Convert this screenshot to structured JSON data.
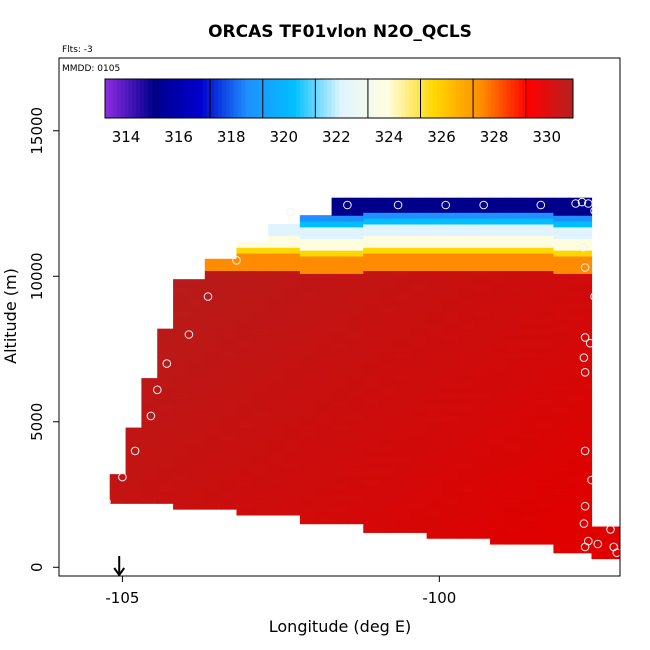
{
  "chart_data": {
    "type": "heatmap",
    "title": "ORCAS TF01vlon N2O_QCLS",
    "annotations": {
      "flts": "Flts: -3",
      "mmdd": "MMDD: 0105"
    },
    "xlabel": "Longitude (deg E)",
    "ylabel": "Altitude (m)",
    "xlim": [
      -106.0,
      -97.15
    ],
    "ylim": [
      -300,
      17500
    ],
    "x_ticks": [
      -105,
      -100
    ],
    "x_tick_labels": [
      "-105",
      "-100"
    ],
    "y_ticks": [
      0,
      5000,
      10000,
      15000
    ],
    "y_tick_labels": [
      "0",
      "5000",
      "10000",
      "15000"
    ],
    "colorbar": {
      "min": 313.2,
      "max": 331.0,
      "tick_values": [
        314,
        316,
        318,
        320,
        322,
        324,
        326,
        328,
        330
      ],
      "tick_labels": [
        "314",
        "316",
        "318",
        "320",
        "322",
        "324",
        "326",
        "328",
        "330"
      ],
      "divisions": [
        313.2,
        315.2,
        317.2,
        319.2,
        321.2,
        323.2,
        325.2,
        327.2,
        329.2,
        331.0
      ],
      "colors": [
        "#8a2be2",
        "#00008b",
        "#0000cd",
        "#1e90ff",
        "#00bfff",
        "#e0f4ff",
        "#fffde0",
        "#ffd700",
        "#ff8c00",
        "#ff0000",
        "#b22222"
      ]
    },
    "arrow_marker_longitude": -105.05,
    "cell_width_deg": 0.25,
    "cell_height_m": 200,
    "profile_columns": [
      {
        "x0": -105.2,
        "x1": -104.95,
        "bottom": 2200,
        "top": 3200
      },
      {
        "x0": -104.95,
        "x1": -104.7,
        "bottom": 2200,
        "top": 4800
      },
      {
        "x0": -104.7,
        "x1": -104.45,
        "bottom": 2200,
        "top": 6500
      },
      {
        "x0": -104.45,
        "x1": -104.2,
        "bottom": 2200,
        "top": 8200
      },
      {
        "x0": -104.2,
        "x1": -103.7,
        "bottom": 2000,
        "top": 9900
      },
      {
        "x0": -103.7,
        "x1": -103.2,
        "bottom": 2000,
        "top": 10600
      },
      {
        "x0": -103.2,
        "x1": -102.7,
        "bottom": 1800,
        "top": 11200
      },
      {
        "x0": -102.7,
        "x1": -102.2,
        "bottom": 1800,
        "top": 11800
      },
      {
        "x0": -102.2,
        "x1": -101.7,
        "bottom": 1500,
        "top": 12100
      },
      {
        "x0": -101.7,
        "x1": -101.2,
        "bottom": 1500,
        "top": 12700
      },
      {
        "x0": -101.2,
        "x1": -100.2,
        "bottom": 1200,
        "top": 12700
      },
      {
        "x0": -100.2,
        "x1": -99.2,
        "bottom": 1000,
        "top": 12700
      },
      {
        "x0": -99.2,
        "x1": -98.2,
        "bottom": 800,
        "top": 12700
      },
      {
        "x0": -98.2,
        "x1": -97.6,
        "bottom": 500,
        "top": 12700
      },
      {
        "x0": -97.6,
        "x1": -97.15,
        "bottom": 300,
        "top": 1400
      }
    ],
    "upper_layer_values": [
      {
        "z0": 12500,
        "z1": 12800,
        "value": 315.0
      },
      {
        "z0": 12200,
        "z1": 12500,
        "value": 316.0
      },
      {
        "z0": 12000,
        "z1": 12200,
        "value": 319.5
      },
      {
        "z0": 11800,
        "z1": 12000,
        "value": 321.0
      },
      {
        "z0": 11600,
        "z1": 11800,
        "value": 322.5
      },
      {
        "z0": 11400,
        "z1": 11600,
        "value": 323.6
      },
      {
        "z0": 11200,
        "z1": 11400,
        "value": 324.5
      },
      {
        "z0": 11000,
        "z1": 11200,
        "value": 325.5
      },
      {
        "z0": 10800,
        "z1": 11000,
        "value": 326.8
      },
      {
        "z0": 10600,
        "z1": 10800,
        "value": 327.8
      },
      {
        "z0": 10400,
        "z1": 10600,
        "value": 328.6
      },
      {
        "z0": 10200,
        "z1": 10400,
        "value": 329.2
      }
    ],
    "main_body_value_west": 330.5,
    "main_body_value_east": 329.4,
    "observation_points": [
      {
        "lon": -105.25,
        "alt": 2250
      },
      {
        "lon": -105.0,
        "alt": 3100
      },
      {
        "lon": -104.8,
        "alt": 4000
      },
      {
        "lon": -104.55,
        "alt": 5200
      },
      {
        "lon": -104.45,
        "alt": 6100
      },
      {
        "lon": -104.3,
        "alt": 7000
      },
      {
        "lon": -103.95,
        "alt": 8000
      },
      {
        "lon": -103.65,
        "alt": 9300
      },
      {
        "lon": -103.2,
        "alt": 10550
      },
      {
        "lon": -102.35,
        "alt": 12200
      },
      {
        "lon": -101.45,
        "alt": 12450
      },
      {
        "lon": -100.65,
        "alt": 12450
      },
      {
        "lon": -99.9,
        "alt": 12450
      },
      {
        "lon": -99.3,
        "alt": 12450
      },
      {
        "lon": -98.4,
        "alt": 12450
      },
      {
        "lon": -97.85,
        "alt": 12500
      },
      {
        "lon": -97.75,
        "alt": 12550
      },
      {
        "lon": -97.65,
        "alt": 12500
      },
      {
        "lon": -97.55,
        "alt": 12250
      },
      {
        "lon": -97.73,
        "alt": 11000
      },
      {
        "lon": -97.7,
        "alt": 10300
      },
      {
        "lon": -97.55,
        "alt": 9300
      },
      {
        "lon": -97.7,
        "alt": 7900
      },
      {
        "lon": -97.62,
        "alt": 7700
      },
      {
        "lon": -97.72,
        "alt": 7200
      },
      {
        "lon": -97.7,
        "alt": 6700
      },
      {
        "lon": -97.7,
        "alt": 4000
      },
      {
        "lon": -97.6,
        "alt": 3000
      },
      {
        "lon": -97.7,
        "alt": 2100
      },
      {
        "lon": -97.72,
        "alt": 1500
      },
      {
        "lon": -97.65,
        "alt": 900
      },
      {
        "lon": -97.7,
        "alt": 700
      },
      {
        "lon": -97.5,
        "alt": 800
      },
      {
        "lon": -97.3,
        "alt": 1300
      },
      {
        "lon": -97.25,
        "alt": 700
      },
      {
        "lon": -97.2,
        "alt": 500
      }
    ]
  }
}
